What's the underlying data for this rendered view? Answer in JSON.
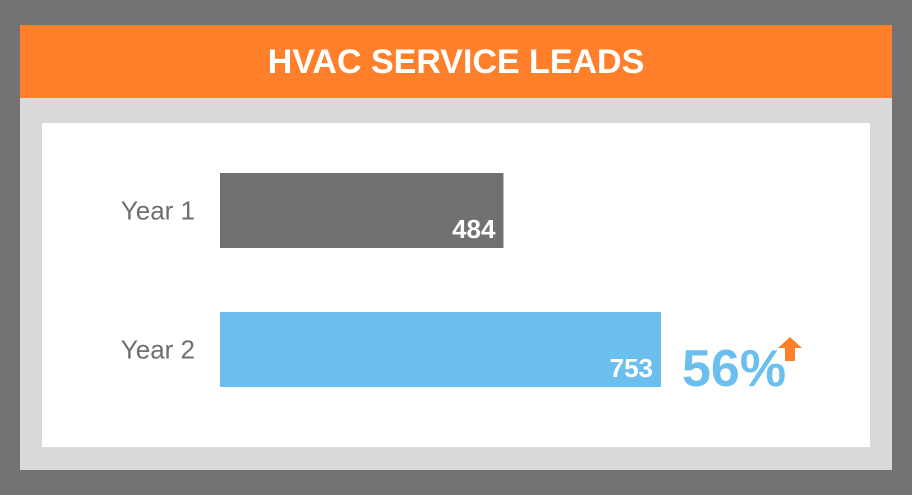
{
  "chart_data": {
    "type": "hbar",
    "title": "HVAC SERVICE LEADS",
    "categories": [
      "Year 1",
      "Year 2"
    ],
    "values": [
      484,
      753
    ],
    "colors": [
      "#717171",
      "#6bbfee"
    ],
    "annotations": [
      "56%"
    ]
  }
}
